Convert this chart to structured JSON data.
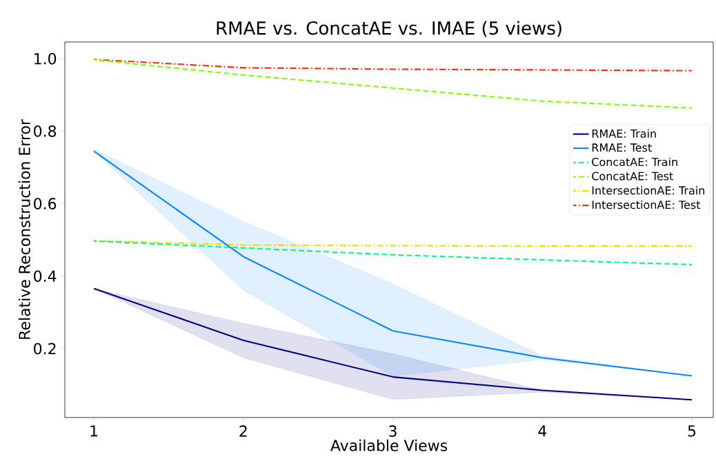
{
  "chart_data": {
    "type": "line",
    "title": "RMAE vs. ConcatAE vs. IMAE (5 views)",
    "xlabel": "Available Views",
    "ylabel": "Relative Reconstruction Error",
    "x": [
      1,
      2,
      3,
      4,
      5
    ],
    "series": [
      {
        "name": "RMAE: Train",
        "color": "#000080",
        "line_style": "solid",
        "values": [
          0.366,
          0.223,
          0.122,
          0.085,
          0.059
        ],
        "lower": [
          0.366,
          0.175,
          0.06,
          0.08,
          0.059
        ],
        "upper": [
          0.366,
          0.27,
          0.186,
          0.085,
          0.059
        ]
      },
      {
        "name": "RMAE: Test",
        "color": "#0a84ff",
        "line_style": "solid",
        "values": [
          0.745,
          0.454,
          0.249,
          0.175,
          0.125
        ],
        "lower": [
          0.745,
          0.361,
          0.124,
          0.17,
          0.125
        ],
        "upper": [
          0.75,
          0.551,
          0.379,
          0.18,
          0.125
        ]
      },
      {
        "name": "ConcatAE: Train",
        "color": "#00ff7f",
        "line_style": "dashed",
        "values": [
          0.497,
          0.478,
          0.459,
          0.445,
          0.432
        ]
      },
      {
        "name": "ConcatAE: Test",
        "color": "#7fff00",
        "line_style": "dashed",
        "values": [
          0.997,
          0.955,
          0.919,
          0.883,
          0.864
        ]
      },
      {
        "name": "IntersectionAE: Train",
        "color": "#ffd700",
        "line_style": "dashdot",
        "values": [
          0.498,
          0.486,
          0.484,
          0.483,
          0.483
        ]
      },
      {
        "name": "IntersectionAE: Test",
        "color": "#ff2a00",
        "line_style": "dashdot",
        "values": [
          0.998,
          0.975,
          0.971,
          0.969,
          0.967
        ]
      }
    ],
    "xlim": [
      0.806,
      5.143
    ],
    "ylim": [
      0.01,
      1.046
    ],
    "xticks": [
      1,
      2,
      3,
      4,
      5
    ],
    "yticks": [
      0.2,
      0.4,
      0.6,
      0.8,
      {
        "value": 1.0,
        "label": "1.0"
      }
    ],
    "grid": false,
    "legend": "right",
    "marker": "none"
  }
}
